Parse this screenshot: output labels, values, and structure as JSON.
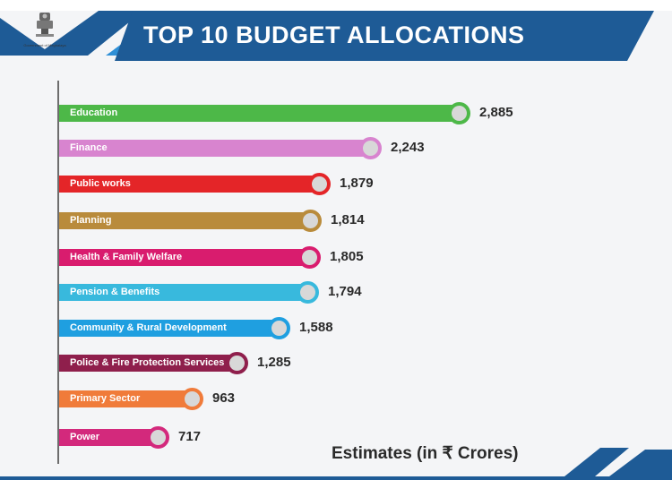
{
  "header": {
    "title": "TOP 10 BUDGET ALLOCATIONS",
    "emblem_caption": "Government of Meghalaya"
  },
  "colors": {
    "banner": "#1e5b96",
    "accent": "#1e5b96"
  },
  "chart_data": {
    "type": "bar",
    "orientation": "horizontal",
    "title": "TOP 10 BUDGET ALLOCATIONS",
    "units_label": "Estimates (in ₹ Crores)",
    "categories": [
      "Education",
      "Finance",
      "Public works",
      "Planning",
      "Health & Family Welfare",
      "Pension & Benefits",
      "Community & Rural Development",
      "Police & Fire Protection Services",
      "Primary Sector",
      "Power"
    ],
    "values": [
      2885,
      2243,
      1879,
      1814,
      1805,
      1794,
      1588,
      1285,
      963,
      717
    ],
    "value_labels": [
      "2,885",
      "2,243",
      "1,879",
      "1,814",
      "1,805",
      "1,794",
      "1,588",
      "1,285",
      "963",
      "717"
    ],
    "bar_colors": [
      "#4db848",
      "#d884cf",
      "#e42528",
      "#b98b3b",
      "#d91c6e",
      "#38b9dd",
      "#1f9fe0",
      "#8f1f4c",
      "#f07b3a",
      "#d3297c"
    ],
    "xlim": [
      0,
      2885
    ],
    "grid": false,
    "legend": "none"
  }
}
